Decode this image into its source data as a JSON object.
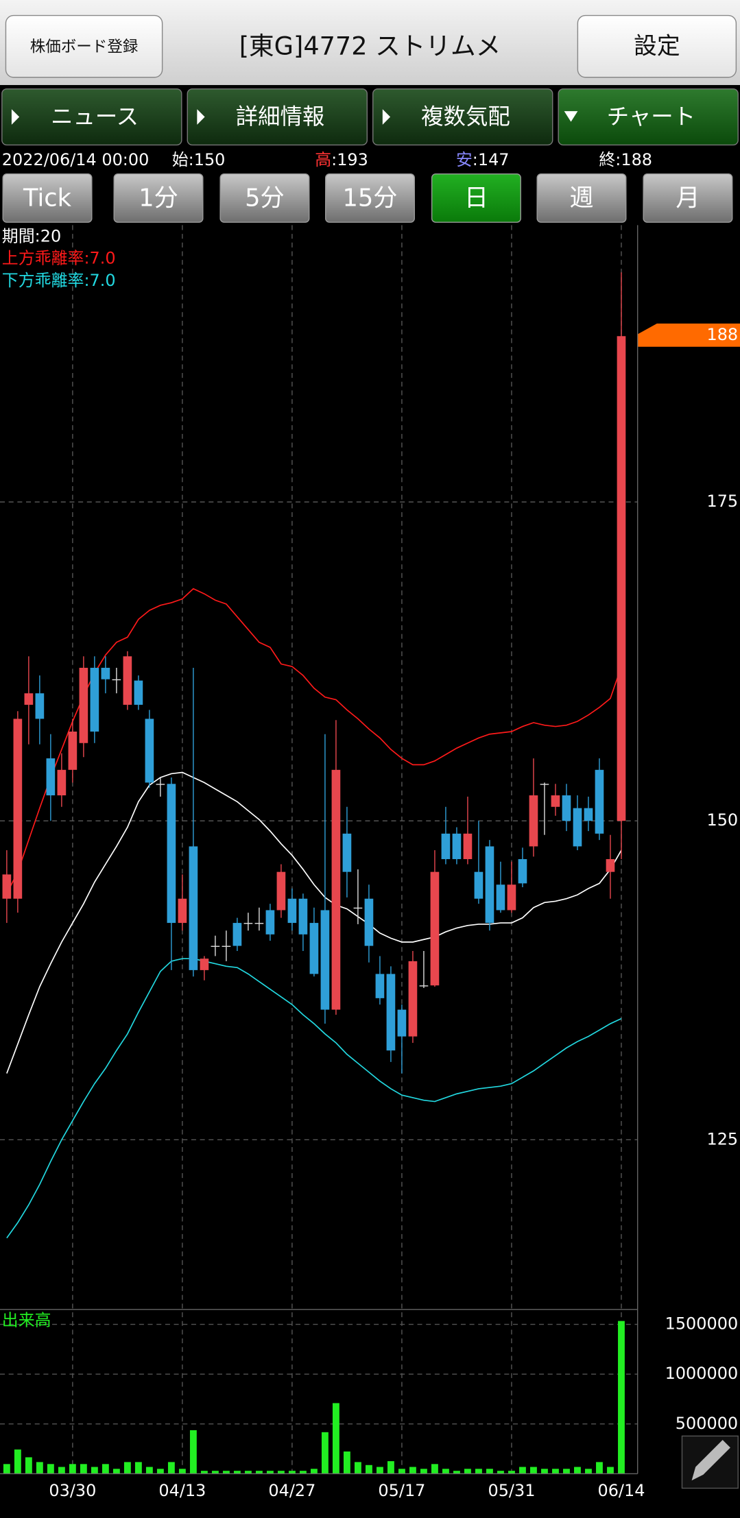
{
  "header": {
    "board_button": "株価ボード登録",
    "title": "[東G]4772 ストリムメ",
    "settings_button": "設定"
  },
  "tabs": [
    "ニュース",
    "詳細情報",
    "複数気配",
    "チャート"
  ],
  "quote": {
    "datetime": "2022/06/14 00:00",
    "open_label": "始:",
    "open": 150,
    "high_label": "高",
    "high_sep": ":",
    "high": 193,
    "low_label": "安",
    "low_sep": ":",
    "low": 147,
    "close_label": "終:",
    "close": 188
  },
  "periods": [
    "Tick",
    "1分",
    "5分",
    "15分",
    "日",
    "週",
    "月"
  ],
  "chart_data": [
    {
      "type": "candlestick",
      "up_color": "#e8474e",
      "down_color": "#2f9fd8",
      "categories": [
        null,
        null,
        null,
        null,
        null,
        null,
        "03/30",
        null,
        null,
        null,
        null,
        null,
        null,
        null,
        null,
        null,
        "04/13",
        null,
        null,
        null,
        null,
        null,
        null,
        null,
        null,
        null,
        "04/27",
        null,
        null,
        null,
        null,
        null,
        null,
        null,
        null,
        null,
        "05/17",
        null,
        null,
        null,
        null,
        null,
        null,
        null,
        null,
        null,
        "05/31",
        null,
        null,
        null,
        null,
        null,
        null,
        null,
        null,
        null,
        "06/14"
      ],
      "open": [
        143.9,
        143.9,
        159.1,
        160.0,
        154.9,
        152.0,
        154.0,
        156.1,
        162.0,
        162.0,
        161.1,
        159.1,
        161.0,
        158.0,
        152.9,
        152.9,
        142.0,
        148.0,
        138.3,
        140.2,
        140.2,
        142.0,
        142.0,
        142.0,
        143.0,
        143.0,
        143.9,
        143.9,
        142.0,
        143.0,
        135.2,
        149.0,
        143.2,
        143.9,
        138.0,
        138.0,
        135.2,
        133.1,
        137.1,
        137.1,
        149.0,
        149.0,
        147.0,
        146.0,
        148.0,
        145.0,
        143.0,
        147.0,
        148.0,
        152.9,
        151.1,
        152.0,
        151.0,
        151.0,
        154.0,
        146.0,
        150
      ],
      "high": [
        147.7,
        158.6,
        162.9,
        161.4,
        156.8,
        155.3,
        158.0,
        162.9,
        162.9,
        162.9,
        162.0,
        163.3,
        161.4,
        158.7,
        153.4,
        153.4,
        145.8,
        162.0,
        139.4,
        141.0,
        141.4,
        142.4,
        142.8,
        143.2,
        143.5,
        146.6,
        144.7,
        144.3,
        143.2,
        156.8,
        157.9,
        151.1,
        146.2,
        145.0,
        139.4,
        138.6,
        135.6,
        139.8,
        139.8,
        147.7,
        151.1,
        149.5,
        151.9,
        150.0,
        148.5,
        146.8,
        146.8,
        147.9,
        154.9,
        153.0,
        152.9,
        152.9,
        152.0,
        151.9,
        154.9,
        148.9,
        193
      ],
      "low": [
        142.0,
        142.8,
        156.0,
        156.0,
        150.0,
        151.1,
        153.0,
        155.0,
        156.1,
        160.0,
        160.0,
        158.7,
        158.7,
        152.6,
        151.9,
        138.3,
        141.4,
        137.8,
        137.5,
        139.4,
        139.0,
        139.8,
        141.4,
        141.4,
        140.6,
        142.4,
        141.4,
        139.8,
        137.8,
        134.1,
        134.8,
        144.0,
        141.9,
        138.9,
        135.6,
        131.1,
        130.2,
        132.6,
        136.9,
        137.0,
        146.6,
        146.6,
        146.6,
        143.5,
        141.4,
        142.8,
        142.8,
        144.8,
        147.2,
        148.9,
        150.4,
        149.2,
        147.7,
        149.2,
        148.5,
        143.9,
        147
      ],
      "close": [
        145.8,
        158.0,
        160.0,
        158.0,
        152.0,
        154.0,
        157.0,
        162.0,
        157.0,
        161.1,
        161.1,
        162.9,
        159.1,
        153.0,
        152.9,
        142.0,
        143.9,
        138.3,
        139.2,
        140.2,
        140.2,
        140.2,
        142.0,
        142.0,
        141.1,
        146.0,
        142.0,
        141.1,
        138.0,
        135.2,
        154.0,
        146.0,
        143.2,
        140.2,
        136.1,
        132.0,
        133.1,
        139.0,
        137.1,
        146.0,
        147.0,
        147.0,
        149.0,
        143.9,
        142.0,
        143.0,
        145.0,
        145.1,
        152.0,
        152.9,
        152.0,
        150.0,
        148.0,
        150.0,
        149.0,
        147.0,
        188
      ],
      "series": [
        {
          "name": "期間:20",
          "color": "#ffffff",
          "values": [
            130.2,
            132.5,
            134.8,
            137,
            138.8,
            140.5,
            142,
            143.5,
            145.2,
            146.6,
            148,
            149.5,
            151.5,
            152.8,
            153.4,
            153.7,
            153.8,
            153.4,
            153,
            152.5,
            152,
            151.5,
            150.8,
            150.1,
            149.2,
            148.2,
            147.3,
            146.2,
            145,
            144,
            143.4,
            143.1,
            142.5,
            141.9,
            141.2,
            140.8,
            140.5,
            140.5,
            140.7,
            140.9,
            141.3,
            141.6,
            141.8,
            141.9,
            141.9,
            142,
            142,
            142.4,
            143.2,
            143.6,
            143.7,
            143.9,
            144.2,
            144.7,
            145.1,
            146.2,
            147.7
          ]
        },
        {
          "name": "上方乖離率:7.0",
          "color": "#ff1a1a",
          "values": [
            144.3,
            146,
            148.5,
            151,
            153.4,
            155.6,
            157.8,
            159.8,
            161.6,
            163,
            164,
            164.4,
            165.8,
            166.5,
            166.9,
            167.1,
            167.4,
            168.2,
            167.8,
            167.3,
            167,
            166,
            165,
            164,
            163.6,
            162.3,
            162.1,
            161.4,
            160.4,
            159.7,
            159.5,
            158.7,
            158,
            157.2,
            156.5,
            155.6,
            154.9,
            154.4,
            154.4,
            154.7,
            155.2,
            155.7,
            156.1,
            156.5,
            156.8,
            156.9,
            157,
            157.4,
            157.7,
            157.5,
            157.4,
            157.5,
            157.8,
            158.3,
            158.9,
            159.6,
            162.1
          ]
        },
        {
          "name": "下方乖離率:7.0",
          "color": "#22d8e0",
          "values": [
            117.3,
            118.5,
            119.9,
            121.5,
            123.3,
            125,
            126.5,
            128,
            129.4,
            130.6,
            132,
            133.3,
            135,
            136.6,
            138.2,
            139,
            139.2,
            139.2,
            139,
            138.8,
            138.6,
            138.5,
            138,
            137.4,
            136.8,
            136.2,
            135.6,
            134.8,
            134.1,
            133.3,
            132.6,
            131.7,
            131,
            130.3,
            129.6,
            129,
            128.5,
            128.3,
            128.1,
            128,
            128.3,
            128.6,
            128.8,
            129,
            129.1,
            129.2,
            129.4,
            129.9,
            130.4,
            131,
            131.6,
            132.2,
            132.7,
            133.1,
            133.6,
            134.1,
            134.5
          ]
        }
      ],
      "last_color": "#ff6a00",
      "ylim": [
        111.7,
        196.7
      ],
      "yticks": [
        125,
        150,
        175
      ],
      "grid": true
    },
    {
      "type": "bar",
      "title": "出来高",
      "color": "#22ee22",
      "values": [
        97000,
        243000,
        165000,
        117000,
        97000,
        68000,
        97000,
        97000,
        68000,
        97000,
        49000,
        117000,
        117000,
        68000,
        49000,
        117000,
        49000,
        437000,
        29000,
        29000,
        29000,
        29000,
        29000,
        29000,
        29000,
        29000,
        29000,
        29000,
        49000,
        417000,
        709000,
        223000,
        117000,
        87000,
        68000,
        126000,
        49000,
        68000,
        49000,
        97000,
        49000,
        29000,
        49000,
        49000,
        49000,
        29000,
        29000,
        68000,
        68000,
        49000,
        49000,
        49000,
        68000,
        49000,
        117000,
        68000,
        1534000
      ],
      "ylim": [
        0,
        1650000
      ],
      "yticks": [
        500000,
        1000000,
        1500000
      ],
      "grid": true
    }
  ]
}
